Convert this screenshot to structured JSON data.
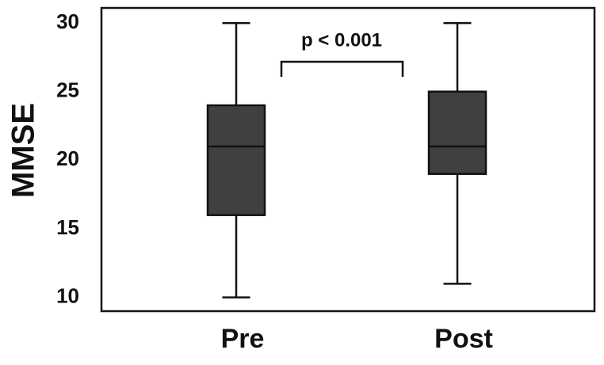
{
  "chart_data": {
    "type": "box",
    "ylabel": "MMSE",
    "categories": [
      "Pre",
      "Post"
    ],
    "series": [
      {
        "color": "#404040",
        "values": [
          {
            "min": 10,
            "q1": 16,
            "median": 21,
            "q3": 24,
            "max": 30
          },
          {
            "min": 11,
            "q1": 19,
            "median": 21,
            "q3": 25,
            "max": 30
          }
        ]
      }
    ],
    "ylim": [
      9,
      31.1
    ],
    "yticks": [
      10,
      15,
      20,
      25,
      30
    ],
    "annotation": "p < 0.001"
  }
}
